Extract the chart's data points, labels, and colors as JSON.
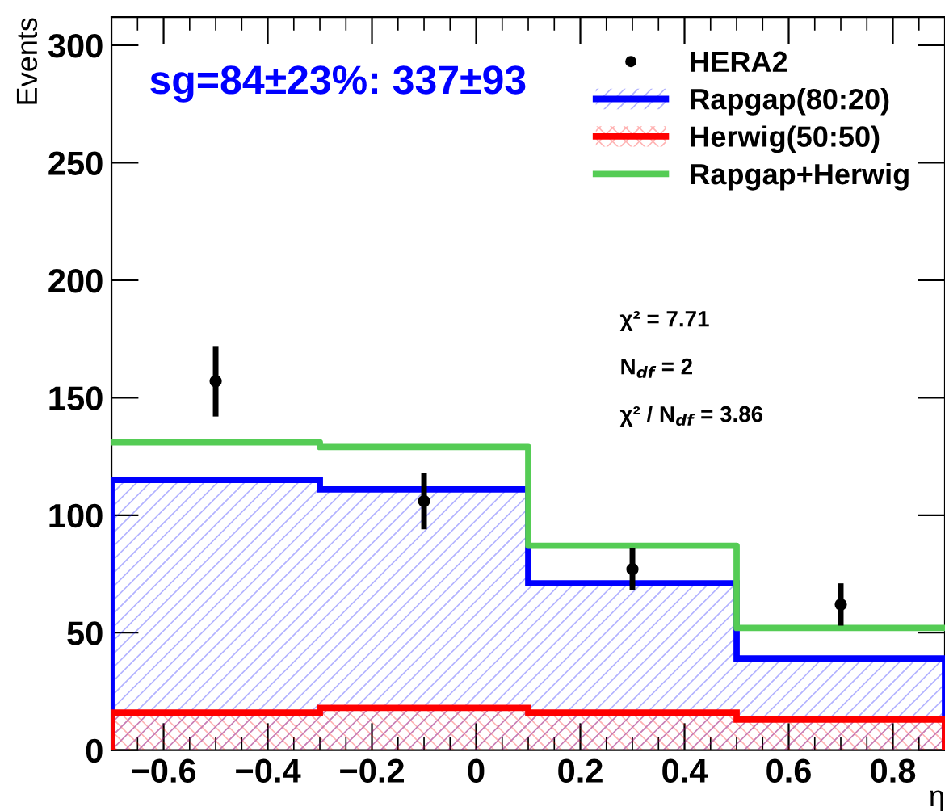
{
  "chart_data": {
    "type": "histogram",
    "ylabel": "Events",
    "xlabel": "η",
    "bins": [
      -0.7,
      -0.3,
      0.1,
      0.5,
      0.9
    ],
    "series": [
      {
        "name": "HERA2",
        "type": "scatter",
        "marker": "circle",
        "color": "#000000",
        "x": [
          -0.5,
          -0.1,
          0.3,
          0.7
        ],
        "values": [
          157,
          106,
          77,
          62
        ],
        "errors": [
          15,
          12,
          9,
          9
        ]
      },
      {
        "name": "Rapgap(80:20)",
        "color": "#0000ff",
        "values": [
          115,
          111,
          71,
          39
        ]
      },
      {
        "name": "Herwig(50:50)",
        "color": "#ff0000",
        "values": [
          16,
          18,
          16,
          13
        ]
      },
      {
        "name": "Rapgap+Herwig",
        "type": "step",
        "color": "#55cc55",
        "x": [
          -0.7,
          -0.3,
          0.1,
          0.5,
          0.9
        ],
        "values": [
          131,
          129,
          87,
          52,
          52
        ]
      }
    ],
    "xlim": [
      -0.7,
      0.9
    ],
    "xticks": [
      {
        "value": -0.6,
        "label": "−0.6"
      },
      {
        "value": -0.4,
        "label": "−0.4"
      },
      {
        "value": -0.2,
        "label": "−0.2"
      },
      0,
      0.2,
      0.4,
      0.6,
      0.8
    ],
    "ylim": [
      0,
      312
    ],
    "yticks": [
      0,
      50,
      100,
      150,
      200,
      250,
      300
    ],
    "annotations": [
      "sg=84±23%: 337±93",
      "χ² = 7.71",
      "N$_{df}$ = 2",
      "χ² / N$_{df}$ = 3.86"
    ],
    "legend": "top right",
    "grid": false
  }
}
